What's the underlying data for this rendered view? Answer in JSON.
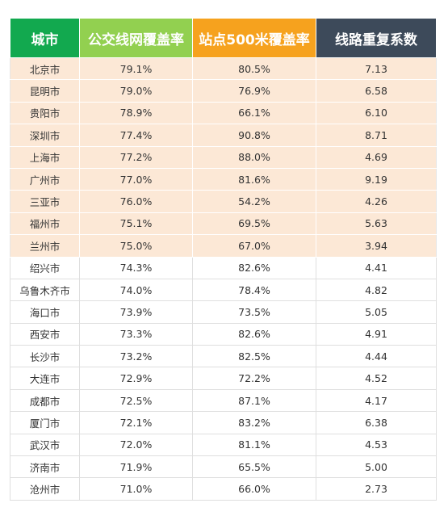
{
  "table": {
    "headers": [
      "城市",
      "公交线网覆盖率",
      "站点500米覆盖率",
      "线路重复系数"
    ],
    "colors": {
      "header_city": "#12a94f",
      "header_bus": "#92d050",
      "header_stop": "#f6a21e",
      "header_route": "#3d4a5a",
      "highlight_row": "#fce8d6"
    },
    "rows": [
      {
        "city": "北京市",
        "bus": "79.1%",
        "stop": "80.5%",
        "route": "7.13",
        "highlight": true
      },
      {
        "city": "昆明市",
        "bus": "79.0%",
        "stop": "76.9%",
        "route": "6.58",
        "highlight": true
      },
      {
        "city": "贵阳市",
        "bus": "78.9%",
        "stop": "66.1%",
        "route": "6.10",
        "highlight": true
      },
      {
        "city": "深圳市",
        "bus": "77.4%",
        "stop": "90.8%",
        "route": "8.71",
        "highlight": true
      },
      {
        "city": "上海市",
        "bus": "77.2%",
        "stop": "88.0%",
        "route": "4.69",
        "highlight": true
      },
      {
        "city": "广州市",
        "bus": "77.0%",
        "stop": "81.6%",
        "route": "9.19",
        "highlight": true
      },
      {
        "city": "三亚市",
        "bus": "76.0%",
        "stop": "54.2%",
        "route": "4.26",
        "highlight": true
      },
      {
        "city": "福州市",
        "bus": "75.1%",
        "stop": "69.5%",
        "route": "5.63",
        "highlight": true
      },
      {
        "city": "兰州市",
        "bus": "75.0%",
        "stop": "67.0%",
        "route": "3.94",
        "highlight": true
      },
      {
        "city": "绍兴市",
        "bus": "74.3%",
        "stop": "82.6%",
        "route": "4.41",
        "highlight": false
      },
      {
        "city": "乌鲁木齐市",
        "bus": "74.0%",
        "stop": "78.4%",
        "route": "4.82",
        "highlight": false
      },
      {
        "city": "海口市",
        "bus": "73.9%",
        "stop": "73.5%",
        "route": "5.05",
        "highlight": false
      },
      {
        "city": "西安市",
        "bus": "73.3%",
        "stop": "82.6%",
        "route": "4.91",
        "highlight": false
      },
      {
        "city": "长沙市",
        "bus": "73.2%",
        "stop": "82.5%",
        "route": "4.44",
        "highlight": false
      },
      {
        "city": "大连市",
        "bus": "72.9%",
        "stop": "72.2%",
        "route": "4.52",
        "highlight": false
      },
      {
        "city": "成都市",
        "bus": "72.5%",
        "stop": "87.1%",
        "route": "4.17",
        "highlight": false
      },
      {
        "city": "厦门市",
        "bus": "72.1%",
        "stop": "83.2%",
        "route": "6.38",
        "highlight": false
      },
      {
        "city": "武汉市",
        "bus": "72.0%",
        "stop": "81.1%",
        "route": "4.53",
        "highlight": false
      },
      {
        "city": "济南市",
        "bus": "71.9%",
        "stop": "65.5%",
        "route": "5.00",
        "highlight": false
      },
      {
        "city": "沧州市",
        "bus": "71.0%",
        "stop": "66.0%",
        "route": "2.73",
        "highlight": false
      }
    ]
  }
}
